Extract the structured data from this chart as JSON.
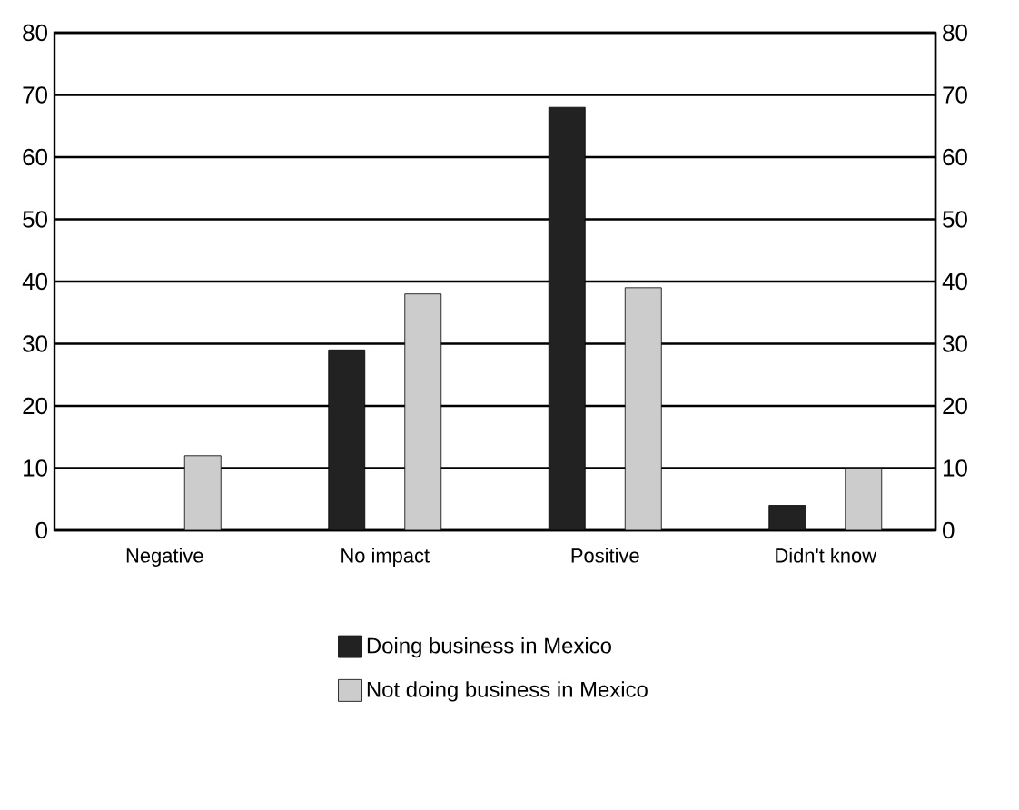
{
  "chart_data": {
    "type": "bar",
    "categories": [
      "Negative",
      "No impact",
      "Positive",
      "Didn't know"
    ],
    "series": [
      {
        "name": "Doing business in Mexico",
        "color": "#222222",
        "values": [
          0,
          29,
          68,
          4
        ]
      },
      {
        "name": "Not doing business in Mexico",
        "color": "#cccccc",
        "values": [
          12,
          38,
          39,
          10
        ]
      }
    ],
    "ylim": [
      0,
      80
    ],
    "yticks": [
      0,
      10,
      20,
      30,
      40,
      50,
      60,
      70,
      80
    ],
    "y2lim": [
      0,
      80
    ],
    "y2ticks": [
      0,
      10,
      20,
      30,
      40,
      50,
      60,
      70,
      80
    ],
    "grid": "y",
    "legend": "bottom"
  }
}
